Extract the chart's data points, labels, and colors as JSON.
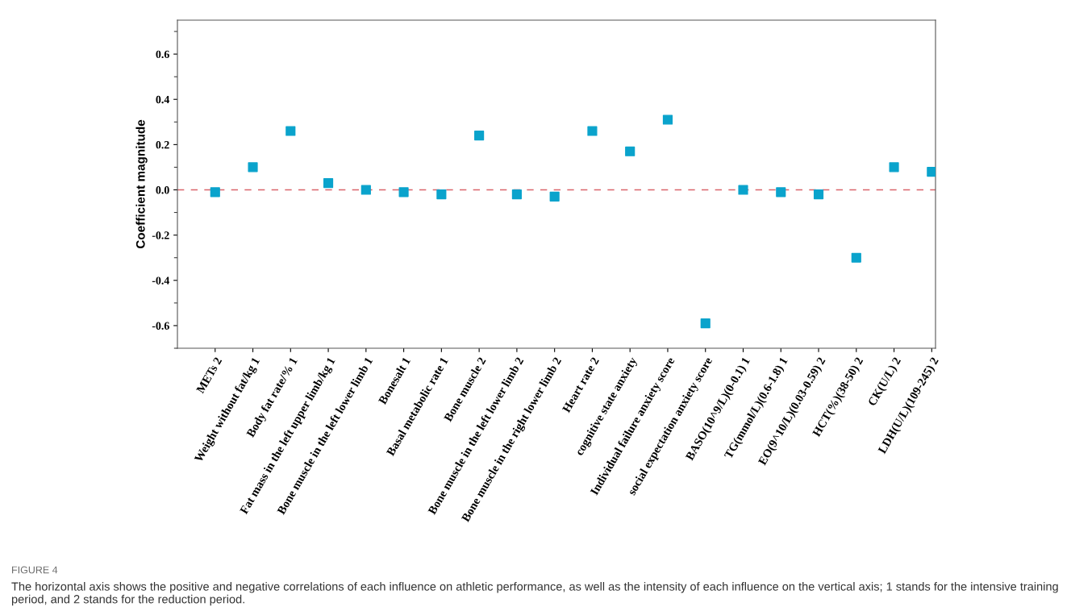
{
  "chart_data": {
    "type": "scatter",
    "ylabel": "Coefficient magnitude",
    "categories": [
      "METs 2",
      "Weight without fat/kg 1",
      "Body fat rate/% 1",
      "Fat mass in the left upper limb/kg 1",
      "Bone muscle in the left lower limb 1",
      "Bonesalt 1",
      "Basal metabolic rate 1",
      "Bone muscle 2",
      "Bone muscle in the left lower limb 2",
      "Bone muscle in the right lower limb 2",
      "Heart rate 2",
      "cognitive state anxiety",
      "Individual failure anxiety score",
      "social expectation anxiety score",
      "BASO(10^9/L)(0-0.1) 1",
      "TG(mmol/L)(0.6-1.8) 1",
      "EO(9^10/L)(0.03-0.59) 2",
      "HCT(%)(38-50) 2",
      "CK(U/L) 2",
      "LDH(U/L)(109-245) 2"
    ],
    "series": [
      {
        "color": "#0aa3cc",
        "values": [
          -0.01,
          0.1,
          0.26,
          0.03,
          0.0,
          -0.01,
          -0.02,
          0.24,
          -0.02,
          -0.03,
          0.26,
          0.17,
          0.31,
          -0.59,
          0.0,
          -0.01,
          -0.02,
          -0.3,
          0.1,
          0.08
        ]
      }
    ],
    "marker": "square",
    "ylim": [
      -0.7,
      0.75
    ],
    "yticks": [
      {
        "value": -0.6,
        "label": "-0.6"
      },
      {
        "value": -0.4,
        "label": "-0.4"
      },
      {
        "value": -0.2,
        "label": "-0.2"
      },
      {
        "value": 0,
        "label": "0.0"
      },
      {
        "value": 0.2,
        "label": "0.2"
      },
      {
        "value": 0.4,
        "label": "0.4"
      },
      {
        "value": 0.6,
        "label": "0.6"
      }
    ],
    "ref_lines": [
      {
        "axis": "y",
        "value": 0,
        "color": "#d9656b",
        "line_style": "dashed"
      }
    ],
    "grid": false,
    "legend": false,
    "annotations": [
      "FIGURE 4",
      "The horizontal axis shows the positive and negative correlations of each influence on athletic performance, as well as the intensity of each influence on the vertical axis; 1 stands for the intensive training period, and 2 stands for the reduction period."
    ]
  }
}
